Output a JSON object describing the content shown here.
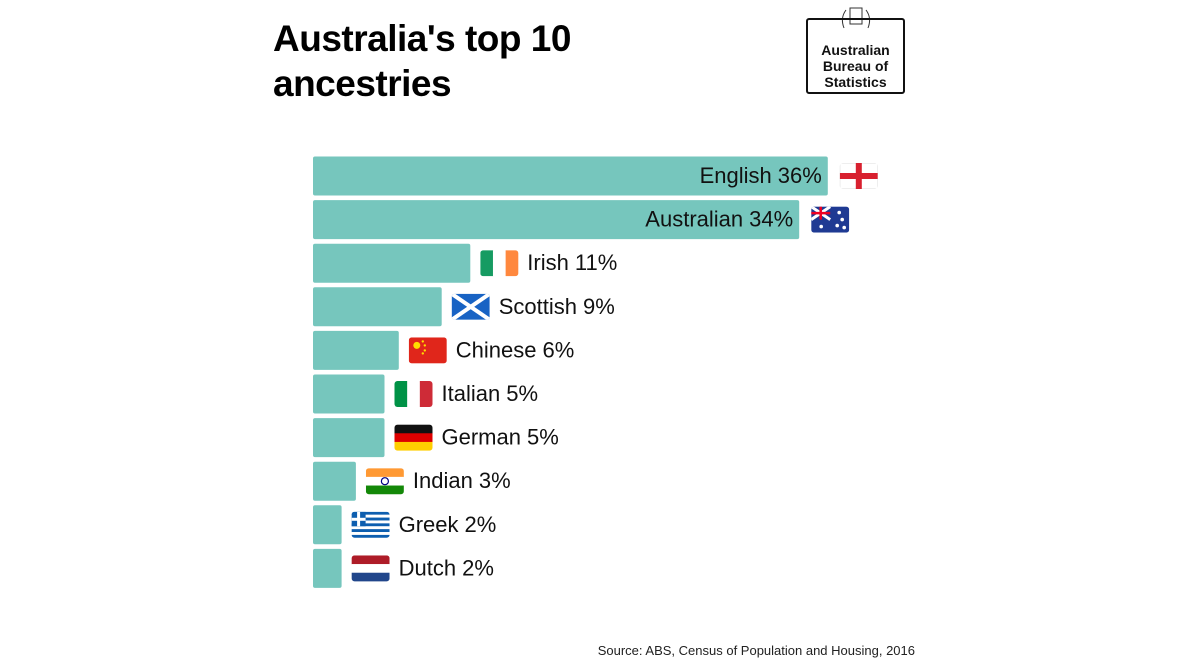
{
  "chart_data": {
    "type": "bar",
    "orientation": "horizontal",
    "title": "Australia's top 10 ancestries",
    "logo": "Australian Bureau of Statistics",
    "source": "Source: ABS, Census of Population and Housing, 2016",
    "categories": [
      "English",
      "Australian",
      "Irish",
      "Scottish",
      "Chinese",
      "Italian",
      "German",
      "Indian",
      "Greek",
      "Dutch"
    ],
    "values": [
      36,
      34,
      11,
      9,
      6,
      5,
      5,
      3,
      2,
      2
    ],
    "value_labels": [
      "36%",
      "34%",
      "11%",
      "9%",
      "6%",
      "5%",
      "5%",
      "3%",
      "2%",
      "2%"
    ],
    "color": "#76c6bd"
  }
}
